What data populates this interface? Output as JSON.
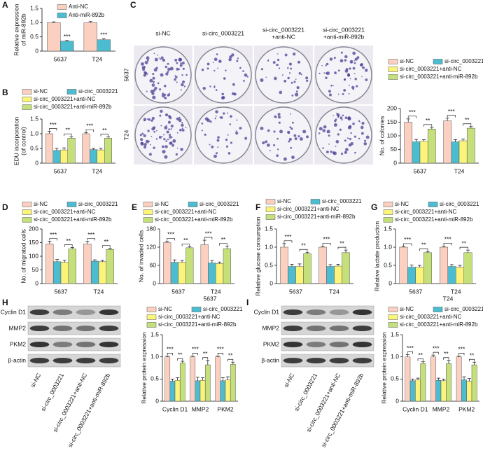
{
  "chart_data": [
    {
      "type": "bar",
      "panel_label": "A",
      "ylabel": [
        "Relative expression",
        "of miR-892b"
      ],
      "categories": [
        "5637",
        "T24"
      ],
      "series": [
        {
          "name": "Anti-NC",
          "color": "#fbd0c0",
          "values": [
            1.0,
            1.0
          ],
          "errors": [
            0.03,
            0.04
          ]
        },
        {
          "name": "Anti-miR-892b",
          "color": "#4cbcd0",
          "values": [
            0.35,
            0.4
          ],
          "errors": [
            0.02,
            0.04
          ]
        }
      ],
      "ylim": [
        0,
        1.5
      ],
      "yticks": [
        0,
        0.5,
        {
          "value": 1,
          "label": "1.0"
        },
        1.5
      ],
      "significance": [
        [
          "***"
        ],
        [
          "***"
        ]
      ]
    },
    {
      "type": "bar",
      "panel_label": "B",
      "ylabel": [
        "EDU incorporation",
        "(of control)"
      ],
      "categories": [
        "5637",
        "T24"
      ],
      "series": [
        {
          "name": "si-NC",
          "color": "#fbd0c0",
          "values": [
            1.0,
            1.0
          ],
          "errors": [
            0.08,
            0.04
          ]
        },
        {
          "name": "si-circ_0003221",
          "color": "#4cbcd0",
          "values": [
            0.43,
            0.46
          ],
          "errors": [
            0.07,
            0.04
          ]
        },
        {
          "name": "si-circ_0003221+anti-NC",
          "color": "#fbf37a",
          "values": [
            0.45,
            0.45
          ],
          "errors": [
            0.07,
            0.06
          ]
        },
        {
          "name": "si-circ_0003221+anti-miR-892b",
          "color": "#c5e07a",
          "values": [
            0.85,
            0.85
          ],
          "errors": [
            0.05,
            0.04
          ]
        }
      ],
      "ylim": [
        0,
        1.5
      ],
      "yticks": [
        0,
        0.5,
        {
          "value": 1,
          "label": "1.0"
        },
        1.5
      ],
      "significance": [
        [
          "***",
          "**"
        ],
        [
          "***",
          "**"
        ]
      ]
    },
    {
      "type": "bar",
      "ylabel": [
        "No. of colonies"
      ],
      "categories": [
        "5637",
        "T24"
      ],
      "series": [
        {
          "name": "si-NC",
          "color": "#fbd0c0",
          "values": [
            150,
            155
          ],
          "errors": [
            12,
            10
          ]
        },
        {
          "name": "si-circ_0003221",
          "color": "#4cbcd0",
          "values": [
            78,
            78
          ],
          "errors": [
            9,
            8
          ]
        },
        {
          "name": "si-circ_0003221+anti-NC",
          "color": "#fbf37a",
          "values": [
            80,
            82
          ],
          "errors": [
            6,
            6
          ]
        },
        {
          "name": "si-circ_0003221+anti-miR-892b",
          "color": "#c5e07a",
          "values": [
            125,
            128
          ],
          "errors": [
            6,
            6
          ]
        }
      ],
      "ylim": [
        0,
        200
      ],
      "yticks": [
        0,
        50,
        100,
        150,
        200
      ],
      "significance": [
        [
          "***",
          "**"
        ],
        [
          "***",
          "**"
        ]
      ]
    },
    {
      "type": "bar",
      "panel_label": "D",
      "ylabel": [
        "No. of migrated cells"
      ],
      "categories": [
        "5637",
        "T24"
      ],
      "series": [
        {
          "name": "si-NC",
          "color": "#fbd0c0",
          "values": [
            145,
            145
          ],
          "errors": [
            10,
            10
          ]
        },
        {
          "name": "si-circ_0003221",
          "color": "#4cbcd0",
          "values": [
            80,
            82
          ],
          "errors": [
            8,
            5
          ]
        },
        {
          "name": "si-circ_0003221+anti-NC",
          "color": "#fbf37a",
          "values": [
            78,
            80
          ],
          "errors": [
            7,
            5
          ]
        },
        {
          "name": "si-circ_0003221+anti-miR-892b",
          "color": "#c5e07a",
          "values": [
            127,
            125
          ],
          "errors": [
            5,
            4
          ]
        }
      ],
      "ylim": [
        0,
        200
      ],
      "yticks": [
        0,
        50,
        100,
        150,
        200
      ],
      "significance": [
        [
          "***",
          "**"
        ],
        [
          "***",
          "**"
        ]
      ]
    },
    {
      "type": "bar",
      "panel_label": "E",
      "ylabel": [
        "No. of invaded cells"
      ],
      "categories": [
        "5637",
        "T24"
      ],
      "series": [
        {
          "name": "si-NC",
          "color": "#fbd0c0",
          "values": [
            135,
            128
          ],
          "errors": [
            5,
            15
          ]
        },
        {
          "name": "si-circ_0003221",
          "color": "#4cbcd0",
          "values": [
            70,
            68
          ],
          "errors": [
            8,
            8
          ]
        },
        {
          "name": "si-circ_0003221+anti-NC",
          "color": "#fbf37a",
          "values": [
            70,
            66
          ],
          "errors": [
            6,
            5
          ]
        },
        {
          "name": "si-circ_0003221+anti-miR-892b",
          "color": "#c5e07a",
          "values": [
            118,
            115
          ],
          "errors": [
            3,
            8
          ]
        }
      ],
      "ylim": [
        0,
        180
      ],
      "yticks": [
        0,
        60,
        120,
        180
      ],
      "significance": [
        [
          "***",
          "**"
        ],
        [
          "***",
          "**"
        ]
      ]
    },
    {
      "type": "bar",
      "panel_label": "F",
      "ylabel": [
        "Relative glucose consumption"
      ],
      "categories": [
        "5637",
        "T24"
      ],
      "series": [
        {
          "name": "si-NC",
          "color": "#fbd0c0",
          "values": [
            1.0,
            1.0
          ],
          "errors": [
            0.1,
            0.03
          ]
        },
        {
          "name": "si-circ_0003221",
          "color": "#4cbcd0",
          "values": [
            0.47,
            0.47
          ],
          "errors": [
            0.06,
            0.05
          ]
        },
        {
          "name": "si-circ_0003221+anti-NC",
          "color": "#fbf37a",
          "values": [
            0.47,
            0.48
          ],
          "errors": [
            0.07,
            0.05
          ]
        },
        {
          "name": "si-circ_0003221+anti-miR-892b",
          "color": "#c5e07a",
          "values": [
            0.82,
            0.85
          ],
          "errors": [
            0.04,
            0.07
          ]
        }
      ],
      "ylim": [
        0,
        1.5
      ],
      "yticks": [
        0,
        0.5,
        {
          "value": 1,
          "label": "1.0"
        },
        1.5
      ],
      "significance": [
        [
          "***",
          "**"
        ],
        [
          "***",
          "**"
        ]
      ]
    },
    {
      "type": "bar",
      "panel_label": "G",
      "ylabel": [
        "Relative lactate production"
      ],
      "categories": [
        "5637",
        "T24"
      ],
      "series": [
        {
          "name": "si-NC",
          "color": "#fbd0c0",
          "values": [
            1.0,
            1.0
          ],
          "errors": [
            0.02,
            0.03
          ]
        },
        {
          "name": "si-circ_0003221",
          "color": "#4cbcd0",
          "values": [
            0.45,
            0.47
          ],
          "errors": [
            0.06,
            0.05
          ]
        },
        {
          "name": "si-circ_0003221+anti-NC",
          "color": "#fbf37a",
          "values": [
            0.45,
            0.45
          ],
          "errors": [
            0.05,
            0.05
          ]
        },
        {
          "name": "si-circ_0003221+anti-miR-892b",
          "color": "#c5e07a",
          "values": [
            0.85,
            0.85
          ],
          "errors": [
            0.03,
            0.07
          ]
        }
      ],
      "ylim": [
        0,
        1.5
      ],
      "yticks": [
        0,
        0.5,
        {
          "value": 1,
          "label": "1.0"
        },
        1.5
      ],
      "significance": [
        [
          "***",
          "**"
        ],
        [
          "***",
          "**"
        ]
      ]
    },
    {
      "type": "bar",
      "title": "5637",
      "ylabel": [
        "Relative protein expression"
      ],
      "categories": [
        "Cyclin D1",
        "MMP2",
        "PKM2"
      ],
      "series": [
        {
          "name": "si-NC",
          "color": "#fbd0c0",
          "values": [
            1.0,
            1.0,
            1.0
          ],
          "errors": [
            0.02,
            0.02,
            0.02
          ]
        },
        {
          "name": "si-circ_0003221",
          "color": "#4cbcd0",
          "values": [
            0.45,
            0.46,
            0.46
          ],
          "errors": [
            0.05,
            0.08,
            0.07
          ]
        },
        {
          "name": "si-circ_0003221+anti-NC",
          "color": "#fbf37a",
          "values": [
            0.47,
            0.47,
            0.48
          ],
          "errors": [
            0.06,
            0.06,
            0.07
          ]
        },
        {
          "name": "si-circ_0003221+anti-miR-892b",
          "color": "#c5e07a",
          "values": [
            0.86,
            0.82,
            0.83
          ],
          "errors": [
            0.04,
            0.1,
            0.05
          ]
        }
      ],
      "ylim": [
        0,
        1.5
      ],
      "yticks": [
        0,
        0.5,
        {
          "value": 1,
          "label": "1.0"
        },
        1.5
      ],
      "significance": [
        [
          "***",
          "**"
        ],
        [
          "***",
          "**"
        ],
        [
          "***",
          "**"
        ]
      ]
    },
    {
      "type": "bar",
      "title": "T24",
      "ylabel": [
        "Relative protein expression"
      ],
      "categories": [
        "Cyclin D1",
        "MMP2",
        "PKM2"
      ],
      "series": [
        {
          "name": "si-NC",
          "color": "#fbd0c0",
          "values": [
            1.0,
            1.0,
            1.0
          ],
          "errors": [
            0.05,
            0.04,
            0.02
          ]
        },
        {
          "name": "si-circ_0003221",
          "color": "#4cbcd0",
          "values": [
            0.46,
            0.47,
            0.48
          ],
          "errors": [
            0.04,
            0.05,
            0.07
          ]
        },
        {
          "name": "si-circ_0003221+anti-NC",
          "color": "#fbf37a",
          "values": [
            0.48,
            0.46,
            0.45
          ],
          "errors": [
            0.04,
            0.04,
            0.06
          ]
        },
        {
          "name": "si-circ_0003221+anti-miR-892b",
          "color": "#c5e07a",
          "values": [
            0.85,
            0.85,
            0.82
          ],
          "errors": [
            0.04,
            0.07,
            0.06
          ]
        }
      ],
      "ylim": [
        0,
        1.5
      ],
      "yticks": [
        0,
        0.5,
        {
          "value": 1,
          "label": "1.0"
        },
        1.5
      ],
      "significance": [
        [
          "***",
          "**"
        ],
        [
          "***",
          "**"
        ],
        [
          "***",
          "**"
        ]
      ]
    }
  ],
  "colony_images": {
    "panel_label": "C",
    "columns": [
      [
        "si-NC"
      ],
      [
        "si-circ_0003221"
      ],
      [
        "si-circ_0003221",
        "+anti-NC"
      ],
      [
        "si-circ_0003221",
        "+anti-miR-892b"
      ]
    ],
    "rows": [
      "5637",
      "T24"
    ]
  },
  "blots": [
    {
      "panel_label": "H",
      "rows": [
        "Cyclin D1",
        "MMP2",
        "PKM2",
        "β-actin"
      ],
      "lanes": [
        "si-NC",
        "si-circ_0003221",
        "si-circ_0003221+anti-NC",
        "si-circ_0003221+anti-miR-892b"
      ]
    },
    {
      "panel_label": "I",
      "rows": [
        "Cyclin D1",
        "MMP2",
        "PKM2",
        "β-actin"
      ],
      "lanes": [
        "si-NC",
        "si-circ_0003221",
        "si-circ_0003221+anti-NC",
        "si-circ_0003221+anti-miR-892b"
      ]
    }
  ]
}
